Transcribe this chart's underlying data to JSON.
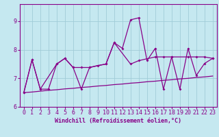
{
  "xlabel": "Windchill (Refroidissement éolien,°C)",
  "bg_color": "#c5e8f0",
  "line_color": "#880088",
  "grid_color": "#a0ccd8",
  "spine_color": "#880088",
  "xlim": [
    -0.5,
    23.5
  ],
  "ylim": [
    6.0,
    9.6
  ],
  "yticks": [
    6,
    7,
    8,
    9
  ],
  "xticks": [
    0,
    1,
    2,
    3,
    4,
    5,
    6,
    7,
    8,
    9,
    10,
    11,
    12,
    13,
    14,
    15,
    16,
    17,
    18,
    19,
    20,
    21,
    22,
    23
  ],
  "line1_x": [
    0,
    1,
    2,
    3,
    4,
    5,
    6,
    7,
    8,
    9,
    10,
    11,
    12,
    13,
    14,
    15,
    16,
    17,
    18,
    19,
    20,
    21,
    22,
    23
  ],
  "line1_y": [
    6.5,
    7.65,
    6.62,
    6.62,
    7.5,
    7.7,
    7.38,
    6.62,
    7.38,
    7.45,
    7.5,
    8.25,
    8.05,
    9.05,
    9.12,
    7.62,
    8.05,
    6.62,
    7.75,
    6.62,
    8.05,
    7.1,
    7.52,
    7.7
  ],
  "line2_x": [
    0,
    1,
    2,
    4,
    5,
    6,
    7,
    8,
    10,
    11,
    13,
    14,
    16,
    17,
    18,
    20,
    21,
    22,
    23
  ],
  "line2_y": [
    6.5,
    7.65,
    6.62,
    7.5,
    7.7,
    7.38,
    7.38,
    7.38,
    7.5,
    8.25,
    7.5,
    7.62,
    7.75,
    7.75,
    7.75,
    7.75,
    7.75,
    7.75,
    7.7
  ],
  "line3_x": [
    0,
    1,
    2,
    3,
    4,
    5,
    6,
    7,
    8,
    9,
    10,
    11,
    12,
    13,
    14,
    15,
    16,
    17,
    18,
    19,
    20,
    21,
    22,
    23
  ],
  "line3_y": [
    6.5,
    6.52,
    6.55,
    6.58,
    6.6,
    6.63,
    6.65,
    6.68,
    6.7,
    6.73,
    6.75,
    6.78,
    6.8,
    6.83,
    6.85,
    6.88,
    6.9,
    6.93,
    6.95,
    6.98,
    7.0,
    7.03,
    7.05,
    7.08
  ],
  "tick_fontsize": 6,
  "xlabel_fontsize": 6
}
